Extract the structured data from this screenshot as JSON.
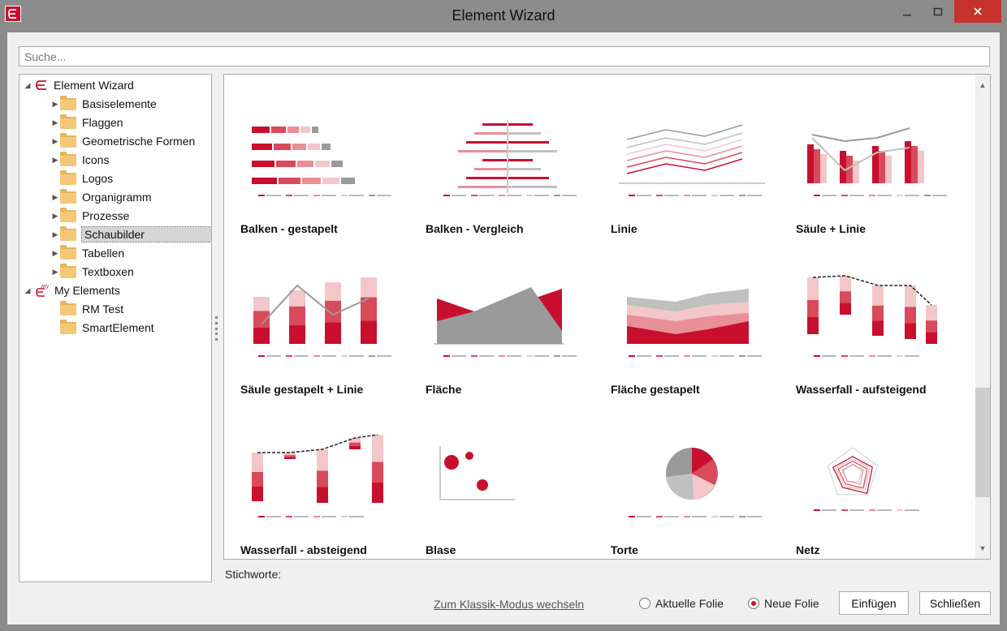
{
  "window": {
    "title": "Element Wizard",
    "app_icon": "wizard-logo-icon",
    "accent": "#c8102e"
  },
  "search": {
    "placeholder": "Suche..."
  },
  "tree": {
    "root": {
      "label": "Element Wizard",
      "icon": "element-wizard-logo-icon"
    },
    "items": [
      {
        "label": "Basiselemente",
        "expandable": true
      },
      {
        "label": "Flaggen",
        "expandable": true
      },
      {
        "label": "Geometrische Formen",
        "expandable": true
      },
      {
        "label": "Icons",
        "expandable": true
      },
      {
        "label": "Logos",
        "expandable": false
      },
      {
        "label": "Organigramm",
        "expandable": true
      },
      {
        "label": "Prozesse",
        "expandable": true
      },
      {
        "label": "Schaubilder",
        "expandable": true,
        "selected": true
      },
      {
        "label": "Tabellen",
        "expandable": true
      },
      {
        "label": "Textboxen",
        "expandable": true
      }
    ],
    "my_root": {
      "label": "My Elements",
      "icon": "my-elements-logo-icon"
    },
    "my_items": [
      {
        "label": "RM Test"
      },
      {
        "label": "SmartElement"
      }
    ]
  },
  "gallery": {
    "tiles": [
      {
        "label": "Balken - gestapelt",
        "kind": "bar-stacked"
      },
      {
        "label": "Balken - Vergleich",
        "kind": "bar-compare"
      },
      {
        "label": "Linie",
        "kind": "line"
      },
      {
        "label": "Säule + Linie",
        "kind": "column-line"
      },
      {
        "label": "Säule gestapelt + Linie",
        "kind": "column-stacked-line"
      },
      {
        "label": "Fläche",
        "kind": "area"
      },
      {
        "label": "Fläche gestapelt",
        "kind": "area-stacked"
      },
      {
        "label": "Wasserfall - aufsteigend",
        "kind": "waterfall-up"
      },
      {
        "label": "Wasserfall - absteigend",
        "kind": "waterfall-down"
      },
      {
        "label": "Blase",
        "kind": "bubble"
      },
      {
        "label": "Torte",
        "kind": "pie"
      },
      {
        "label": "Netz",
        "kind": "radar"
      }
    ]
  },
  "footer": {
    "keywords_label": "Stichworte:",
    "classic_link": "Zum Klassik-Modus wechseln",
    "radio_current": "Aktuelle Folie",
    "radio_new": "Neue Folie",
    "selected_radio": "new",
    "insert_button": "Einfügen",
    "close_button": "Schließen"
  }
}
